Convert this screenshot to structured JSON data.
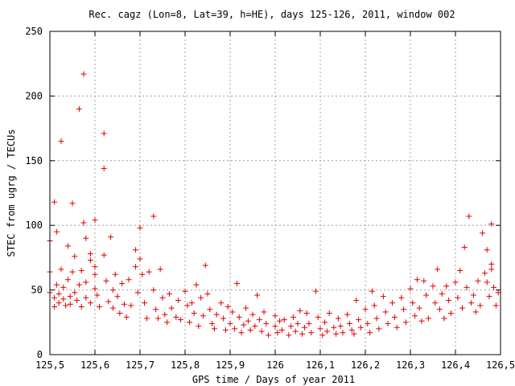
{
  "chart_data": {
    "type": "scatter",
    "title": "Rec. cagz (Lon=8, Lat=39, h=HE), days 125-126, 2011, window 002",
    "xlabel": "GPS time / Days of year 2011",
    "ylabel": "STEC from ugrg / TECUs",
    "xlim": [
      125.5,
      126.5
    ],
    "ylim": [
      0,
      250
    ],
    "x_ticks": [
      "125,5",
      "125,6",
      "125,7",
      "125,8",
      "125,9",
      "126",
      "126,1",
      "126,2",
      "126,3",
      "126,4",
      "126,5"
    ],
    "y_ticks": [
      "0",
      "50",
      "100",
      "150",
      "200",
      "250"
    ],
    "grid": true,
    "marker": "+",
    "color": "#e00000",
    "points": [
      [
        125.5,
        88
      ],
      [
        125.5,
        64
      ],
      [
        125.5,
        48
      ],
      [
        125.51,
        37
      ],
      [
        125.51,
        44
      ],
      [
        125.51,
        118
      ],
      [
        125.515,
        95
      ],
      [
        125.515,
        54
      ],
      [
        125.52,
        40
      ],
      [
        125.52,
        47
      ],
      [
        125.525,
        165
      ],
      [
        125.525,
        66
      ],
      [
        125.53,
        52
      ],
      [
        125.53,
        43
      ],
      [
        125.535,
        38
      ],
      [
        125.54,
        84
      ],
      [
        125.54,
        58
      ],
      [
        125.545,
        45
      ],
      [
        125.545,
        39
      ],
      [
        125.55,
        117
      ],
      [
        125.55,
        64
      ],
      [
        125.555,
        76
      ],
      [
        125.555,
        48
      ],
      [
        125.56,
        42
      ],
      [
        125.565,
        190
      ],
      [
        125.565,
        54
      ],
      [
        125.57,
        65
      ],
      [
        125.57,
        37
      ],
      [
        125.575,
        217
      ],
      [
        125.575,
        102
      ],
      [
        125.58,
        90
      ],
      [
        125.58,
        56
      ],
      [
        125.58,
        44
      ],
      [
        125.59,
        78
      ],
      [
        125.59,
        73
      ],
      [
        125.59,
        40
      ],
      [
        125.6,
        104
      ],
      [
        125.6,
        68
      ],
      [
        125.6,
        62
      ],
      [
        125.6,
        51
      ],
      [
        125.605,
        46
      ],
      [
        125.61,
        37
      ],
      [
        125.62,
        171
      ],
      [
        125.62,
        144
      ],
      [
        125.62,
        77
      ],
      [
        125.625,
        57
      ],
      [
        125.63,
        41
      ],
      [
        125.635,
        91
      ],
      [
        125.64,
        50
      ],
      [
        125.64,
        36
      ],
      [
        125.645,
        62
      ],
      [
        125.65,
        45
      ],
      [
        125.655,
        32
      ],
      [
        125.66,
        55
      ],
      [
        125.665,
        39
      ],
      [
        125.67,
        29
      ],
      [
        125.675,
        58
      ],
      [
        125.68,
        38
      ],
      [
        125.69,
        81
      ],
      [
        125.69,
        68
      ],
      [
        125.695,
        48
      ],
      [
        125.7,
        98
      ],
      [
        125.7,
        74
      ],
      [
        125.705,
        62
      ],
      [
        125.71,
        40
      ],
      [
        125.715,
        28
      ],
      [
        125.72,
        64
      ],
      [
        125.73,
        107
      ],
      [
        125.73,
        50
      ],
      [
        125.735,
        35
      ],
      [
        125.74,
        28
      ],
      [
        125.745,
        66
      ],
      [
        125.75,
        44
      ],
      [
        125.755,
        31
      ],
      [
        125.76,
        25
      ],
      [
        125.765,
        47
      ],
      [
        125.77,
        36
      ],
      [
        125.78,
        29
      ],
      [
        125.785,
        42
      ],
      [
        125.79,
        27
      ],
      [
        125.8,
        49
      ],
      [
        125.805,
        38
      ],
      [
        125.81,
        25
      ],
      [
        125.815,
        40
      ],
      [
        125.82,
        32
      ],
      [
        125.825,
        54
      ],
      [
        125.83,
        22
      ],
      [
        125.835,
        44
      ],
      [
        125.84,
        30
      ],
      [
        125.845,
        69
      ],
      [
        125.85,
        47
      ],
      [
        125.855,
        35
      ],
      [
        125.86,
        24
      ],
      [
        125.865,
        20
      ],
      [
        125.87,
        31
      ],
      [
        125.88,
        40
      ],
      [
        125.885,
        28
      ],
      [
        125.89,
        19
      ],
      [
        125.895,
        37
      ],
      [
        125.9,
        24
      ],
      [
        125.905,
        33
      ],
      [
        125.91,
        20
      ],
      [
        125.915,
        55
      ],
      [
        125.92,
        29
      ],
      [
        125.925,
        17
      ],
      [
        125.93,
        23
      ],
      [
        125.935,
        36
      ],
      [
        125.94,
        26
      ],
      [
        125.945,
        19
      ],
      [
        125.95,
        31
      ],
      [
        125.955,
        22
      ],
      [
        125.96,
        46
      ],
      [
        125.965,
        27
      ],
      [
        125.97,
        18
      ],
      [
        125.975,
        33
      ],
      [
        125.98,
        24
      ],
      [
        125.985,
        15
      ],
      [
        126.0,
        30
      ],
      [
        126.0,
        22
      ],
      [
        126.005,
        17
      ],
      [
        126.01,
        26
      ],
      [
        126.015,
        19
      ],
      [
        126.02,
        27
      ],
      [
        126.03,
        15
      ],
      [
        126.035,
        22
      ],
      [
        126.04,
        29
      ],
      [
        126.045,
        18
      ],
      [
        126.05,
        24
      ],
      [
        126.055,
        34
      ],
      [
        126.06,
        16
      ],
      [
        126.065,
        21
      ],
      [
        126.07,
        32
      ],
      [
        126.075,
        24
      ],
      [
        126.08,
        17
      ],
      [
        126.09,
        49
      ],
      [
        126.095,
        29
      ],
      [
        126.1,
        20
      ],
      [
        126.105,
        15
      ],
      [
        126.11,
        25
      ],
      [
        126.115,
        18
      ],
      [
        126.12,
        32
      ],
      [
        126.13,
        21
      ],
      [
        126.135,
        16
      ],
      [
        126.14,
        28
      ],
      [
        126.145,
        22
      ],
      [
        126.15,
        17
      ],
      [
        126.16,
        31
      ],
      [
        126.165,
        24
      ],
      [
        126.17,
        19
      ],
      [
        126.175,
        16
      ],
      [
        126.18,
        42
      ],
      [
        126.185,
        27
      ],
      [
        126.19,
        21
      ],
      [
        126.2,
        35
      ],
      [
        126.205,
        24
      ],
      [
        126.21,
        17
      ],
      [
        126.215,
        49
      ],
      [
        126.22,
        38
      ],
      [
        126.225,
        28
      ],
      [
        126.23,
        20
      ],
      [
        126.24,
        45
      ],
      [
        126.245,
        33
      ],
      [
        126.25,
        24
      ],
      [
        126.26,
        40
      ],
      [
        126.265,
        29
      ],
      [
        126.27,
        21
      ],
      [
        126.28,
        44
      ],
      [
        126.285,
        35
      ],
      [
        126.29,
        25
      ],
      [
        126.3,
        51
      ],
      [
        126.305,
        40
      ],
      [
        126.31,
        30
      ],
      [
        126.315,
        58
      ],
      [
        126.32,
        36
      ],
      [
        126.325,
        26
      ],
      [
        126.33,
        57
      ],
      [
        126.335,
        46
      ],
      [
        126.34,
        28
      ],
      [
        126.35,
        53
      ],
      [
        126.355,
        40
      ],
      [
        126.36,
        66
      ],
      [
        126.365,
        35
      ],
      [
        126.37,
        47
      ],
      [
        126.375,
        28
      ],
      [
        126.38,
        53
      ],
      [
        126.385,
        42
      ],
      [
        126.39,
        32
      ],
      [
        126.4,
        56
      ],
      [
        126.405,
        44
      ],
      [
        126.41,
        65
      ],
      [
        126.415,
        36
      ],
      [
        126.42,
        83
      ],
      [
        126.425,
        52
      ],
      [
        126.43,
        107
      ],
      [
        126.435,
        40
      ],
      [
        126.44,
        46
      ],
      [
        126.445,
        33
      ],
      [
        126.45,
        57
      ],
      [
        126.455,
        38
      ],
      [
        126.46,
        94
      ],
      [
        126.465,
        63
      ],
      [
        126.47,
        81
      ],
      [
        126.47,
        56
      ],
      [
        126.475,
        45
      ],
      [
        126.48,
        101
      ],
      [
        126.48,
        70
      ],
      [
        126.48,
        66
      ],
      [
        126.485,
        52
      ],
      [
        126.49,
        38
      ],
      [
        126.495,
        48
      ]
    ]
  }
}
